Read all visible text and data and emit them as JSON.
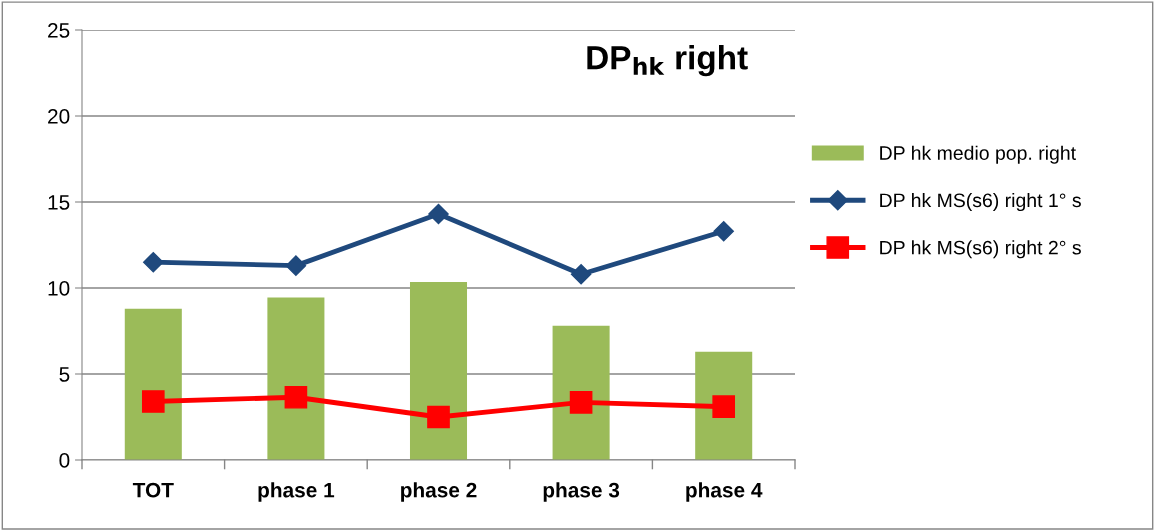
{
  "chart_data": {
    "type": "bar",
    "title": "DP$_{hk}$ right",
    "categories": [
      "TOT",
      "phase 1",
      "phase 2",
      "phase 3",
      "phase 4"
    ],
    "series": [
      {
        "name": "DP hk medio pop. right",
        "color": "#9bbb59",
        "values": [
          8.8,
          9.45,
          10.35,
          7.8,
          6.3
        ]
      },
      {
        "name": "DP hk MS(s6) right 1° s",
        "type": "line",
        "color": "#1f497d",
        "marker": "diamond",
        "values": [
          11.5,
          11.3,
          14.3,
          10.8,
          13.3
        ]
      },
      {
        "name": "DP hk MS(s6) right 2° s",
        "type": "line",
        "color": "#ff0000",
        "marker": "square",
        "values": [
          3.4,
          3.65,
          2.5,
          3.35,
          3.1
        ]
      }
    ],
    "ylim": [
      0,
      25
    ],
    "yticks": [
      0,
      5,
      10,
      15,
      20,
      25
    ],
    "grid": "y",
    "legend": "right"
  }
}
